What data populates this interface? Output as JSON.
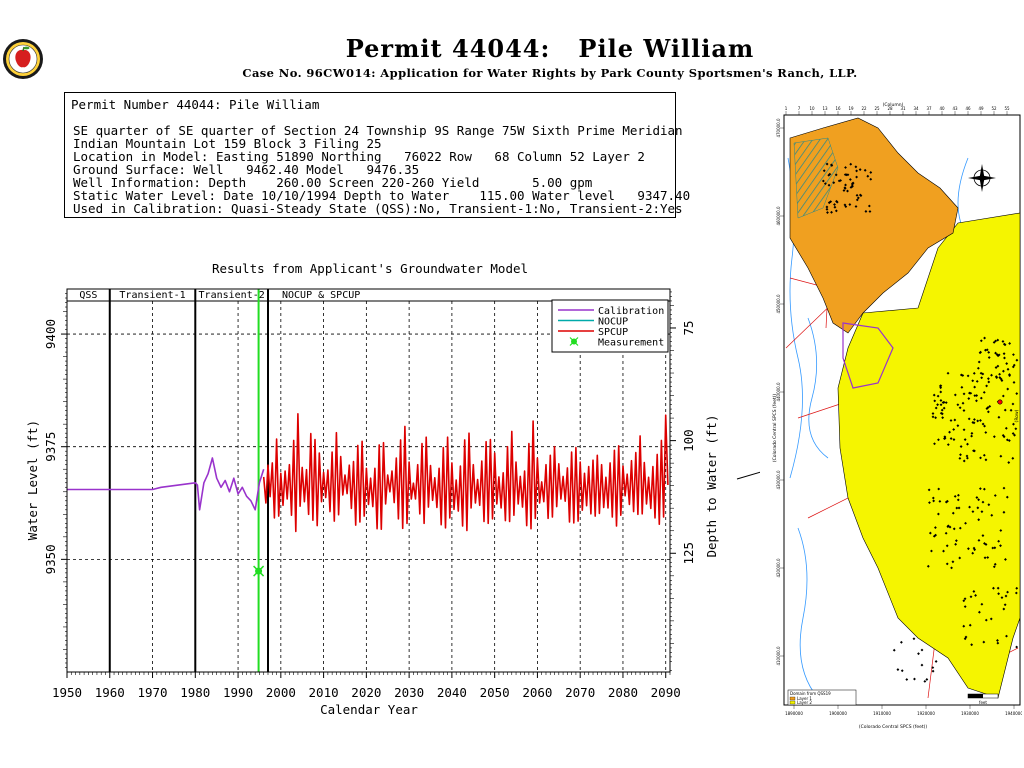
{
  "header": {
    "title": "Permit 44044:   Pile William",
    "subtitle": "Case No. 96CW014: Application for Water Rights by Park County Sportsmen's Ranch, LLP."
  },
  "info_box": {
    "header": "Permit Number 44044: Pile William",
    "lines": [
      "SE quarter of SE quarter of Section 24 Township 9S Range 75W Sixth Prime Meridian",
      "Indian Mountain Lot 159 Block 3 Filing 25",
      "Location in Model: Easting 51890 Northing   76022 Row   68 Column 52 Layer 2",
      "Ground Surface: Well   9462.40 Model   9476.35",
      "Well Information: Depth    260.00 Screen 220-260 Yield       5.00 gpm",
      "Static Water Level: Date 10/10/1994 Depth to Water    115.00 Water level   9347.40",
      "Used in Calibration: Quasi-Steady State (QSS):No, Transient-1:No, Transient-2:Yes"
    ]
  },
  "map": {
    "top_label": "(Column)",
    "left_label": "(Colorado Central SPCS (feet))",
    "right_label": "(Row)",
    "bottom_label": "(Colorado Central SPCS (feet))",
    "x_ticks": [
      "1890000",
      "1900000",
      "1910000",
      "1920000",
      "1930000",
      "1940000"
    ],
    "y_ticks": [
      "470000.0",
      "460000.0",
      "450000.0",
      "440000.0",
      "430000.0",
      "420000.0",
      "410000.0"
    ],
    "col_ticks": [
      "1",
      "7",
      "10",
      "13",
      "16",
      "19",
      "22",
      "25",
      "28",
      "31",
      "34",
      "37",
      "40",
      "43",
      "46",
      "49",
      "52",
      "55"
    ],
    "legend": {
      "title": "Domain from QSS19",
      "layer1": "Layer 1",
      "layer2": "Layer 2"
    },
    "scale_label": "feet"
  },
  "colors": {
    "calibration": "#9933cc",
    "nocup": "#00aaaa",
    "spcup": "#dd0000",
    "measurement": "#22dd22",
    "layer1": "#f0a020",
    "layer2": "#f5f500"
  },
  "chart_data": {
    "type": "line",
    "title": "Results from Applicant's Groundwater Model",
    "xlabel": "Calendar Year",
    "ylabel": "Water Level (ft)",
    "y2label": "Depth to Water (ft)",
    "xlim": [
      1950,
      2091
    ],
    "ylim": [
      9325,
      9410
    ],
    "x_ticks": [
      1950,
      1960,
      1970,
      1980,
      1990,
      2000,
      2010,
      2020,
      2030,
      2040,
      2050,
      2060,
      2070,
      2080,
      2090
    ],
    "y_ticks": [
      9350,
      9375,
      9400
    ],
    "y2_ticks": [
      75,
      100,
      125
    ],
    "ground_surface_model": 9476.35,
    "grid": true,
    "legend_position": "top-right",
    "periods": [
      {
        "label": "QSS",
        "start": 1950,
        "end": 1960
      },
      {
        "label": "Transient-1",
        "start": 1960,
        "end": 1980
      },
      {
        "label": "Transient-2",
        "start": 1980,
        "end": 1997
      },
      {
        "label": "NOCUP  &  SPCUP",
        "start": 1997,
        "end": 2091
      }
    ],
    "series": [
      {
        "name": "Calibration",
        "x": [
          1950,
          1970,
          1972,
          1980,
          1980.5,
          1981,
          1982,
          1983,
          1984,
          1985,
          1986,
          1987,
          1988,
          1989,
          1990,
          1991,
          1992,
          1993,
          1994,
          1995,
          1996
        ],
        "y": [
          9365.5,
          9365.5,
          9366,
          9367,
          9366.5,
          9361,
          9367,
          9369,
          9372.5,
          9368,
          9366,
          9367.5,
          9365,
          9368,
          9364.5,
          9366,
          9364,
          9363,
          9361,
          9367,
          9370
        ]
      },
      {
        "name": "NOCUP",
        "x": [],
        "y": []
      },
      {
        "name": "SPCUP",
        "x": [
          1996.0,
          1996.5,
          1997.0,
          1997.5,
          1998.0,
          1998.5,
          1999.0,
          1999.5,
          2000.0,
          2000.5,
          2001.0,
          2001.5,
          2002.0,
          2002.5,
          2003.0,
          2003.5,
          2004.0,
          2004.5,
          2005.0,
          2005.5,
          2006.0,
          2006.5,
          2007.0,
          2007.5,
          2008.0,
          2008.5,
          2009.0,
          2009.5,
          2010.0,
          2010.5,
          2011.0,
          2011.5,
          2012.0,
          2012.5,
          2013.0,
          2013.5,
          2014.0,
          2014.5,
          2015.0,
          2015.5,
          2016.0,
          2016.5,
          2017.0,
          2017.5,
          2018.0,
          2018.5,
          2019.0,
          2019.5,
          2020.0,
          2020.5,
          2021.0,
          2021.5,
          2022.0,
          2022.5,
          2023.0,
          2023.5,
          2024.0,
          2024.5,
          2025.0,
          2025.5,
          2026.0,
          2026.5,
          2027.0,
          2027.5,
          2028.0,
          2028.5,
          2029.0,
          2029.5,
          2030.0,
          2030.5,
          2031.0,
          2031.5,
          2032.0,
          2032.5,
          2033.0,
          2033.5,
          2034.0,
          2034.5,
          2035.0,
          2035.5,
          2036.0,
          2036.5,
          2037.0,
          2037.5,
          2038.0,
          2038.5,
          2039.0,
          2039.5,
          2040.0,
          2040.5,
          2041.0,
          2041.5,
          2042.0,
          2042.5,
          2043.0,
          2043.5,
          2044.0,
          2044.5,
          2045.0,
          2045.5,
          2046.0,
          2046.5,
          2047.0,
          2047.5,
          2048.0,
          2048.5,
          2049.0,
          2049.5,
          2050.0,
          2050.5,
          2051.0,
          2051.5,
          2052.0,
          2052.5,
          2053.0,
          2053.5,
          2054.0,
          2054.5,
          2055.0,
          2055.5,
          2056.0,
          2056.5,
          2057.0,
          2057.5,
          2058.0,
          2058.5,
          2059.0,
          2059.5,
          2060.0,
          2060.5,
          2061.0,
          2061.5,
          2062.0,
          2062.5,
          2063.0,
          2063.5,
          2064.0,
          2064.5,
          2065.0,
          2065.5,
          2066.0,
          2066.5,
          2067.0,
          2067.5,
          2068.0,
          2068.5,
          2069.0,
          2069.5,
          2070.0,
          2070.5,
          2071.0,
          2071.5,
          2072.0,
          2072.5,
          2073.0,
          2073.5,
          2074.0,
          2074.5,
          2075.0,
          2075.5,
          2076.0,
          2076.5,
          2077.0,
          2077.5,
          2078.0,
          2078.5,
          2079.0,
          2079.5,
          2080.0,
          2080.5,
          2081.0,
          2081.5,
          2082.0,
          2082.5,
          2083.0,
          2083.5,
          2084.0,
          2084.5,
          2085.0,
          2085.5,
          2086.0,
          2086.5,
          2087.0,
          2087.5,
          2088.0,
          2088.5,
          2089.0,
          2089.5,
          2090.0,
          2090.5
        ],
        "y": [
          9368.3,
          9362.5,
          9370.9,
          9363.9,
          9371.4,
          9359.2,
          9376.7,
          9359.6,
          9369.1,
          9362.0,
          9369.6,
          9363.4,
          9371.0,
          9359.8,
          9376.4,
          9356.2,
          9382.3,
          9361.8,
          9370.4,
          9362.8,
          9369.9,
          9360.0,
          9377.9,
          9358.7,
          9376.6,
          9357.5,
          9373.6,
          9362.8,
          9369.3,
          9363.7,
          9369.8,
          9360.6,
          9373.8,
          9358.5,
          9378.1,
          9359.9,
          9372.8,
          9364.3,
          9368.7,
          9364.6,
          9370.9,
          9361.3,
          9371.7,
          9357.6,
          9375.3,
          9358.3,
          9376.2,
          9359.6,
          9370.2,
          9362.2,
          9368.0,
          9361.7,
          9370.2,
          9356.8,
          9375.4,
          9356.7,
          9375.9,
          9362.3,
          9368.7,
          9365.0,
          9369.6,
          9362.6,
          9372.5,
          9359.0,
          9376.5,
          9356.9,
          9379.5,
          9358.0,
          9371.6,
          9363.4,
          9366.9,
          9363.4,
          9371.0,
          9360.1,
          9375.7,
          9358.0,
          9377.1,
          9361.6,
          9370.8,
          9363.1,
          9368.1,
          9361.5,
          9370.2,
          9357.7,
          9374.8,
          9357.0,
          9377.1,
          9359.2,
          9371.4,
          9361.1,
          9367.6,
          9360.7,
          9370.7,
          9357.4,
          9376.5,
          9356.4,
          9378.0,
          9361.4,
          9371.0,
          9362.5,
          9367.7,
          9362.0,
          9371.8,
          9358.4,
          9376.1,
          9358.0,
          9376.6,
          9359.0,
          9373.6,
          9362.3,
          9368.3,
          9361.4,
          9369.2,
          9358.6,
          9375.0,
          9358.4,
          9378.4,
          9359.8,
          9371.6,
          9362.3,
          9368.4,
          9361.6,
          9369.6,
          9357.5,
          9375.7,
          9356.8,
          9380.7,
          9359.1,
          9372.5,
          9362.5,
          9367.2,
          9362.8,
          9371.0,
          9359.1,
          9373.1,
          9359.4,
          9375.0,
          9361.7,
          9371.2,
          9363.4,
          9368.4,
          9362.9,
          9370.3,
          9358.3,
          9373.8,
          9358.1,
          9374.8,
          9358.5,
          9371.6,
          9360.9,
          9369.1,
          9361.9,
          9370.6,
          9360.1,
          9372.0,
          9359.6,
          9373.1,
          9360.2,
          9371.0,
          9361.5,
          9368.2,
          9361.4,
          9371.4,
          9359.4,
          9374.2,
          9357.4,
          9375.2,
          9359.8,
          9370.7,
          9364.1,
          9368.9,
          9362.2,
          9371.9,
          9360.6,
          9373.7,
          9360.0,
          9377.4,
          9360.1,
          9371.5,
          9362.3,
          9368.2,
          9361.3,
          9370.6,
          9359.2,
          9373.3,
          9357.8,
          9376.4,
          9359.4,
          9382.0,
          9366.5
        ]
      },
      {
        "name": "Measurement",
        "x": [
          1994.8
        ],
        "y": [
          9347.4
        ]
      }
    ],
    "markers": [
      {
        "name": "Transient-2 measurement date",
        "x": 1994.8
      }
    ]
  }
}
